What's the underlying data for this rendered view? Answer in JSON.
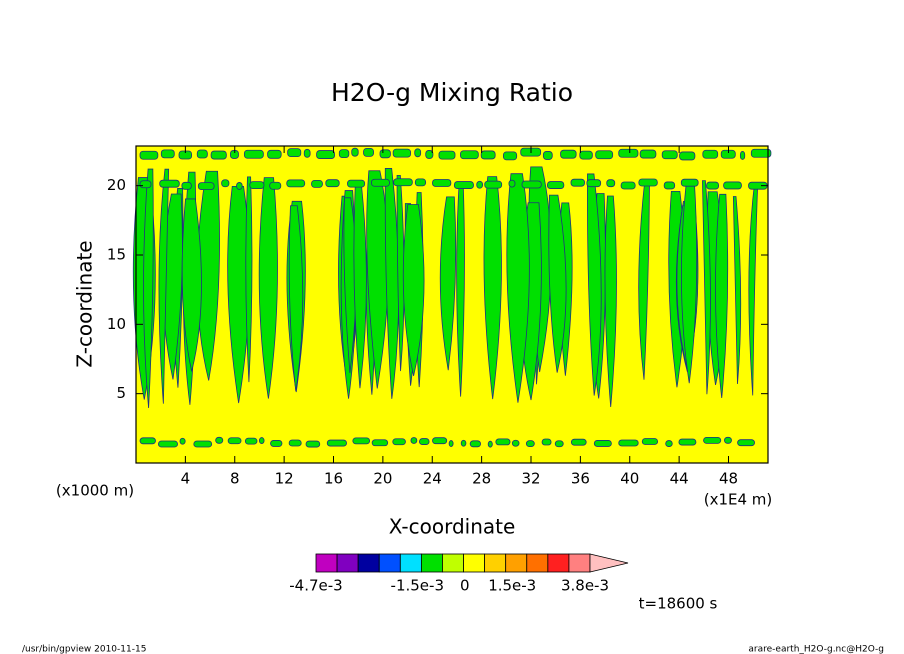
{
  "chart_data": {
    "type": "contour",
    "title": "H2O-g Mixing Ratio",
    "x_label": "X-coordinate",
    "y_label": "Z-coordinate",
    "x_unit": "(x1E4 m)",
    "y_unit": "(x1000 m)",
    "xlim": [
      0,
      51.2
    ],
    "xticks": [
      4,
      8,
      12,
      16,
      20,
      24,
      28,
      32,
      36,
      40,
      44,
      48
    ],
    "ylim": [
      0,
      22.86
    ],
    "yticks": [
      5,
      10,
      15,
      20
    ],
    "colorbar": {
      "colors": [
        "#c000c0",
        "#8000c0",
        "#0000a0",
        "#0050ff",
        "#00e0ff",
        "#00e000",
        "#c0ff00",
        "#ffff00",
        "#ffd000",
        "#ffa000",
        "#ff7000",
        "#ff2020",
        "#ff8080",
        "#ffc0c0"
      ],
      "lim": [
        -0.0047,
        0.0038
      ],
      "ticks": [
        {
          "value": -0.0047,
          "label": "-4.7e-3"
        },
        {
          "value": -0.0015,
          "label": "-1.5e-3"
        },
        0,
        {
          "value": 0.0015,
          "label": "1.5e-3"
        },
        {
          "value": 0.0038,
          "label": "3.8e-3"
        }
      ]
    },
    "time_label": "t=18600 s",
    "footer_left": "/usr/bin/gpview  2010-11-15",
    "footer_right": "arare-earth_H2O-g.nc@H2O-g"
  }
}
